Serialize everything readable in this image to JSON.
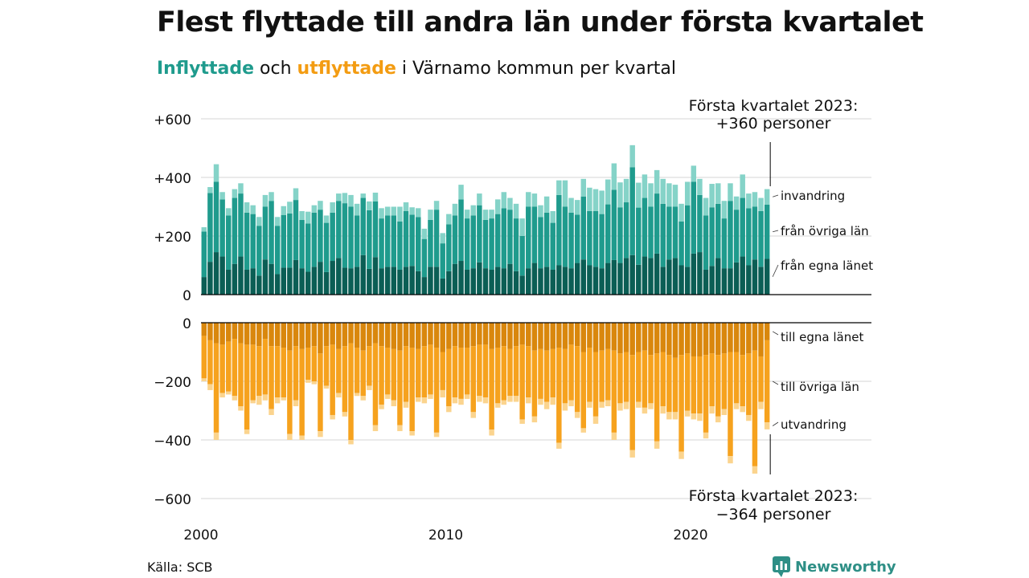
{
  "title": "Flest flyttade till andra län under första kvartalet",
  "subtitle": {
    "part1": "Inflyttade",
    "part2": " och ",
    "part3": "utflyttade",
    "part4": " i Värnamo kommun per kvartal"
  },
  "source": "Källa: SCB",
  "brand": "Newsworthy",
  "colors": {
    "in_own": "#0b5e55",
    "in_other": "#1f9b8d",
    "in_immigration": "#85d3c8",
    "out_own": "#d9870d",
    "out_other": "#f6a21e",
    "out_emigration": "#fbd48e",
    "grid": "#dddddd",
    "axis": "#000000"
  },
  "chart_data": {
    "type": "bar",
    "stacked": true,
    "title": "",
    "x_ticks": [
      {
        "year": 2000,
        "label": "2000"
      },
      {
        "year": 2010,
        "label": "2010"
      },
      {
        "year": 2020,
        "label": "2020"
      }
    ],
    "top_panel": {
      "ylim": [
        0,
        600
      ],
      "ticks": [
        {
          "value": 0,
          "label": "0"
        },
        {
          "value": 200,
          "label": "+200"
        },
        {
          "value": 400,
          "label": "+400"
        },
        {
          "value": 600,
          "label": "+600"
        }
      ],
      "annotation": [
        "Första kvartalet 2023:",
        "+360 personer"
      ],
      "series_labels": [
        "invandring",
        "från övriga län",
        "från egna länet"
      ]
    },
    "bottom_panel": {
      "ylim": [
        -600,
        0
      ],
      "ticks": [
        {
          "value": 0,
          "label": "0"
        },
        {
          "value": -200,
          "label": "−200"
        },
        {
          "value": -400,
          "label": "−400"
        },
        {
          "value": -600,
          "label": "−600"
        }
      ],
      "annotation": [
        "Första kvartalet 2023:",
        "−364 personer"
      ],
      "series_labels": [
        "till egna länet",
        "till övriga län",
        "utvandring"
      ]
    },
    "quarters": [
      "2000Q1",
      "2000Q2",
      "2000Q3",
      "2000Q4",
      "2001Q1",
      "2001Q2",
      "2001Q3",
      "2001Q4",
      "2002Q1",
      "2002Q2",
      "2002Q3",
      "2002Q4",
      "2003Q1",
      "2003Q2",
      "2003Q3",
      "2003Q4",
      "2004Q1",
      "2004Q2",
      "2004Q3",
      "2004Q4",
      "2005Q1",
      "2005Q2",
      "2005Q3",
      "2005Q4",
      "2006Q1",
      "2006Q2",
      "2006Q3",
      "2006Q4",
      "2007Q1",
      "2007Q2",
      "2007Q3",
      "2007Q4",
      "2008Q1",
      "2008Q2",
      "2008Q3",
      "2008Q4",
      "2009Q1",
      "2009Q2",
      "2009Q3",
      "2009Q4",
      "2010Q1",
      "2010Q2",
      "2010Q3",
      "2010Q4",
      "2011Q1",
      "2011Q2",
      "2011Q3",
      "2011Q4",
      "2012Q1",
      "2012Q2",
      "2012Q3",
      "2012Q4",
      "2013Q1",
      "2013Q2",
      "2013Q3",
      "2013Q4",
      "2014Q1",
      "2014Q2",
      "2014Q3",
      "2014Q4",
      "2015Q1",
      "2015Q2",
      "2015Q3",
      "2015Q4",
      "2016Q1",
      "2016Q2",
      "2016Q3",
      "2016Q4",
      "2017Q1",
      "2017Q2",
      "2017Q3",
      "2017Q4",
      "2018Q1",
      "2018Q2",
      "2018Q3",
      "2018Q4",
      "2019Q1",
      "2019Q2",
      "2019Q3",
      "2019Q4",
      "2020Q1",
      "2020Q2",
      "2020Q3",
      "2020Q4",
      "2021Q1",
      "2021Q2",
      "2021Q3",
      "2021Q4",
      "2022Q1",
      "2022Q2",
      "2022Q3",
      "2022Q4",
      "2023Q1"
    ],
    "inflow": {
      "own_county": [
        60,
        112,
        145,
        130,
        85,
        105,
        130,
        85,
        90,
        65,
        120,
        105,
        70,
        92,
        92,
        118,
        90,
        78,
        95,
        112,
        77,
        115,
        125,
        92,
        90,
        95,
        135,
        88,
        128,
        90,
        95,
        95,
        85,
        95,
        98,
        80,
        60,
        95,
        95,
        55,
        80,
        105,
        115,
        85,
        90,
        110,
        90,
        85,
        95,
        90,
        105,
        80,
        65,
        90,
        108,
        90,
        95,
        85,
        100,
        95,
        90,
        108,
        120,
        100,
        95,
        90,
        108,
        118,
        108,
        125,
        135,
        102,
        130,
        125,
        140,
        95,
        120,
        125,
        100,
        95,
        140,
        145,
        85,
        98,
        125,
        90,
        90,
        110,
        130,
        100,
        120,
        95,
        122
      ],
      "other_counties": [
        155,
        235,
        240,
        195,
        185,
        225,
        215,
        195,
        185,
        170,
        180,
        215,
        165,
        180,
        185,
        205,
        165,
        165,
        185,
        178,
        168,
        165,
        195,
        220,
        210,
        175,
        195,
        200,
        190,
        170,
        175,
        175,
        165,
        190,
        175,
        185,
        130,
        160,
        195,
        120,
        160,
        165,
        210,
        175,
        180,
        195,
        165,
        175,
        180,
        205,
        185,
        180,
        135,
        210,
        192,
        175,
        185,
        160,
        240,
        205,
        190,
        165,
        215,
        185,
        190,
        185,
        200,
        240,
        190,
        190,
        300,
        195,
        200,
        175,
        205,
        215,
        180,
        175,
        150,
        210,
        245,
        195,
        185,
        200,
        185,
        170,
        230,
        180,
        200,
        195,
        180,
        190,
        185
      ],
      "immigration": [
        15,
        20,
        60,
        25,
        25,
        30,
        35,
        35,
        30,
        30,
        40,
        30,
        30,
        30,
        40,
        40,
        30,
        40,
        25,
        30,
        25,
        35,
        25,
        35,
        40,
        40,
        15,
        30,
        30,
        35,
        30,
        30,
        50,
        30,
        25,
        30,
        35,
        35,
        30,
        35,
        35,
        40,
        50,
        30,
        35,
        40,
        35,
        30,
        50,
        55,
        40,
        50,
        60,
        50,
        45,
        40,
        55,
        40,
        50,
        90,
        50,
        50,
        60,
        80,
        75,
        80,
        85,
        90,
        85,
        80,
        75,
        85,
        80,
        80,
        80,
        85,
        80,
        75,
        60,
        80,
        55,
        55,
        60,
        80,
        70,
        60,
        60,
        45,
        80,
        50,
        50,
        45,
        53
      ]
    },
    "outflow": {
      "own_county": [
        -45,
        -60,
        -70,
        -75,
        -65,
        -55,
        -70,
        -75,
        -75,
        -80,
        -55,
        -80,
        -80,
        -85,
        -95,
        -80,
        -90,
        -85,
        -80,
        -105,
        -80,
        -75,
        -90,
        -80,
        -70,
        -85,
        -95,
        -80,
        -70,
        -80,
        -85,
        -90,
        -95,
        -80,
        -85,
        -90,
        -80,
        -75,
        -85,
        -100,
        -90,
        -80,
        -85,
        -85,
        -80,
        -75,
        -75,
        -90,
        -85,
        -80,
        -90,
        -80,
        -75,
        -80,
        -95,
        -90,
        -95,
        -90,
        -85,
        -90,
        -75,
        -80,
        -100,
        -85,
        -100,
        -95,
        -90,
        -95,
        -105,
        -100,
        -110,
        -100,
        -95,
        -110,
        -105,
        -100,
        -110,
        -120,
        -110,
        -105,
        -115,
        -115,
        -110,
        -105,
        -110,
        -105,
        -100,
        -100,
        -110,
        -105,
        -95,
        -115,
        -60
      ],
      "other_counties": [
        -145,
        -150,
        -305,
        -165,
        -170,
        -195,
        -215,
        -290,
        -190,
        -170,
        -190,
        -215,
        -175,
        -170,
        -285,
        -185,
        -295,
        -110,
        -120,
        -265,
        -135,
        -240,
        -150,
        -225,
        -330,
        -155,
        -155,
        -135,
        -280,
        -200,
        -160,
        -175,
        -255,
        -190,
        -285,
        -165,
        -175,
        -170,
        -290,
        -130,
        -195,
        -175,
        -175,
        -160,
        -225,
        -175,
        -180,
        -275,
        -190,
        -185,
        -160,
        -170,
        -255,
        -175,
        -225,
        -170,
        -175,
        -165,
        -325,
        -185,
        -190,
        -225,
        -260,
        -185,
        -220,
        -175,
        -175,
        -280,
        -170,
        -170,
        -325,
        -170,
        -195,
        -165,
        -300,
        -185,
        -195,
        -185,
        -330,
        -195,
        -195,
        -195,
        -265,
        -180,
        -210,
        -190,
        -355,
        -175,
        -175,
        -210,
        -395,
        -155,
        -280
      ],
      "emigration": [
        -10,
        -20,
        -25,
        -15,
        -10,
        -15,
        -15,
        -15,
        -10,
        -30,
        -20,
        -20,
        -20,
        -10,
        -20,
        -20,
        -15,
        -10,
        -10,
        -20,
        -10,
        -15,
        -15,
        -15,
        -15,
        -10,
        -15,
        -15,
        -20,
        -15,
        -15,
        -20,
        -20,
        -20,
        -15,
        -15,
        -20,
        -15,
        -15,
        -25,
        -20,
        -20,
        -20,
        -15,
        -20,
        -20,
        -20,
        -20,
        -15,
        -15,
        -20,
        -20,
        -15,
        -20,
        -20,
        -20,
        -25,
        -25,
        -20,
        -25,
        -20,
        -20,
        -15,
        -20,
        -25,
        -20,
        -20,
        -25,
        -25,
        -25,
        -25,
        -20,
        -20,
        -20,
        -25,
        -25,
        -25,
        -25,
        -25,
        -20,
        -20,
        -25,
        -20,
        -25,
        -20,
        -20,
        -25,
        -20,
        -20,
        -20,
        -25,
        -25,
        -24
      ]
    }
  }
}
